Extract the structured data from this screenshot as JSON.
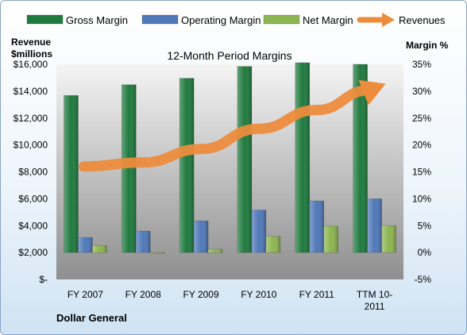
{
  "chart_data": {
    "type": "bar",
    "title": "12-Month Period Margins",
    "company": "Dollar General",
    "left_axis_label": [
      "Revenue",
      "$millions"
    ],
    "right_axis_label": "Margin %",
    "categories": [
      "FY 2007",
      "FY 2008",
      "FY 2009",
      "FY 2010",
      "FY 2011",
      "TTM 10-2011"
    ],
    "category_labels": [
      [
        "FY 2007"
      ],
      [
        "FY 2008"
      ],
      [
        "FY 2009"
      ],
      [
        "FY 2010"
      ],
      [
        "FY 2011"
      ],
      [
        "TTM 10-",
        "2011"
      ]
    ],
    "left_axis": {
      "ylim": [
        0,
        16000
      ],
      "ticks": [
        0,
        2000,
        4000,
        6000,
        8000,
        10000,
        12000,
        14000,
        16000
      ],
      "tick_labels": [
        "$-",
        "$2,000",
        "$4,000",
        "$6,000",
        "$8,000",
        "$10,000",
        "$12,000",
        "$14,000",
        "$16,000"
      ]
    },
    "right_axis": {
      "ylim": [
        -5,
        35
      ],
      "ticks": [
        -5,
        0,
        5,
        10,
        15,
        20,
        25,
        30,
        35
      ],
      "tick_labels": [
        "-5%",
        "0%",
        "5%",
        "10%",
        "15%",
        "20%",
        "25%",
        "30%",
        "35%"
      ]
    },
    "series": [
      {
        "name": "Gross Margin",
        "axis": "right",
        "kind": "bar",
        "color": "#1f7a3e",
        "values": [
          29.2,
          31.2,
          32.4,
          34.6,
          35.3,
          35.0
        ]
      },
      {
        "name": "Operating Margin",
        "axis": "right",
        "kind": "bar",
        "color": "#4f78b8",
        "values": [
          2.8,
          4.0,
          5.9,
          7.9,
          9.6,
          10.0
        ]
      },
      {
        "name": "Net Margin",
        "axis": "right",
        "kind": "bar",
        "color": "#8db550",
        "values": [
          1.3,
          -0.1,
          0.6,
          3.0,
          4.9,
          5.0
        ]
      },
      {
        "name": "Revenues",
        "axis": "left",
        "kind": "arrow",
        "color": "#ec8c3c",
        "values": [
          8400,
          8700,
          9700,
          11200,
          12600,
          14200
        ]
      }
    ],
    "legend_position": "top",
    "grid": false
  }
}
